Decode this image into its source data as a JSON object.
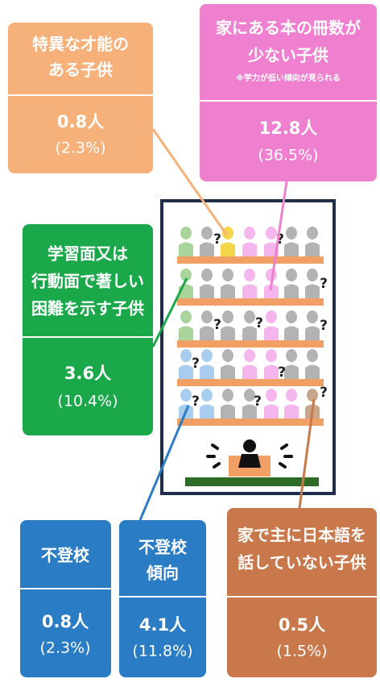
{
  "boxes": [
    {
      "title_lines": [
        "特異な才能の",
        "ある子供"
      ],
      "count": "0.8人",
      "percent": "(2.3%)"
    },
    {
      "title_lines": [
        "家にある本の冊数が",
        "少ない子供"
      ],
      "note": "※学力が低い傾向が見られる",
      "count": "12.8人",
      "percent": "(36.5%)"
    },
    {
      "title_lines": [
        "学習面又は",
        "行動面で著しい",
        "困難を示す子供"
      ],
      "count": "3.6人",
      "percent": "(10.4%)"
    },
    {
      "title_lines": [
        "不登校"
      ],
      "count": "0.8人",
      "percent": "(2.3%)"
    },
    {
      "title_lines": [
        "不登校",
        "傾向"
      ],
      "count": "4.1人",
      "percent": "(11.8%)"
    },
    {
      "title_lines": [
        "家で主に日本語を",
        "話していない子供"
      ],
      "count": "0.5人",
      "percent": "(1.5%)"
    }
  ]
}
